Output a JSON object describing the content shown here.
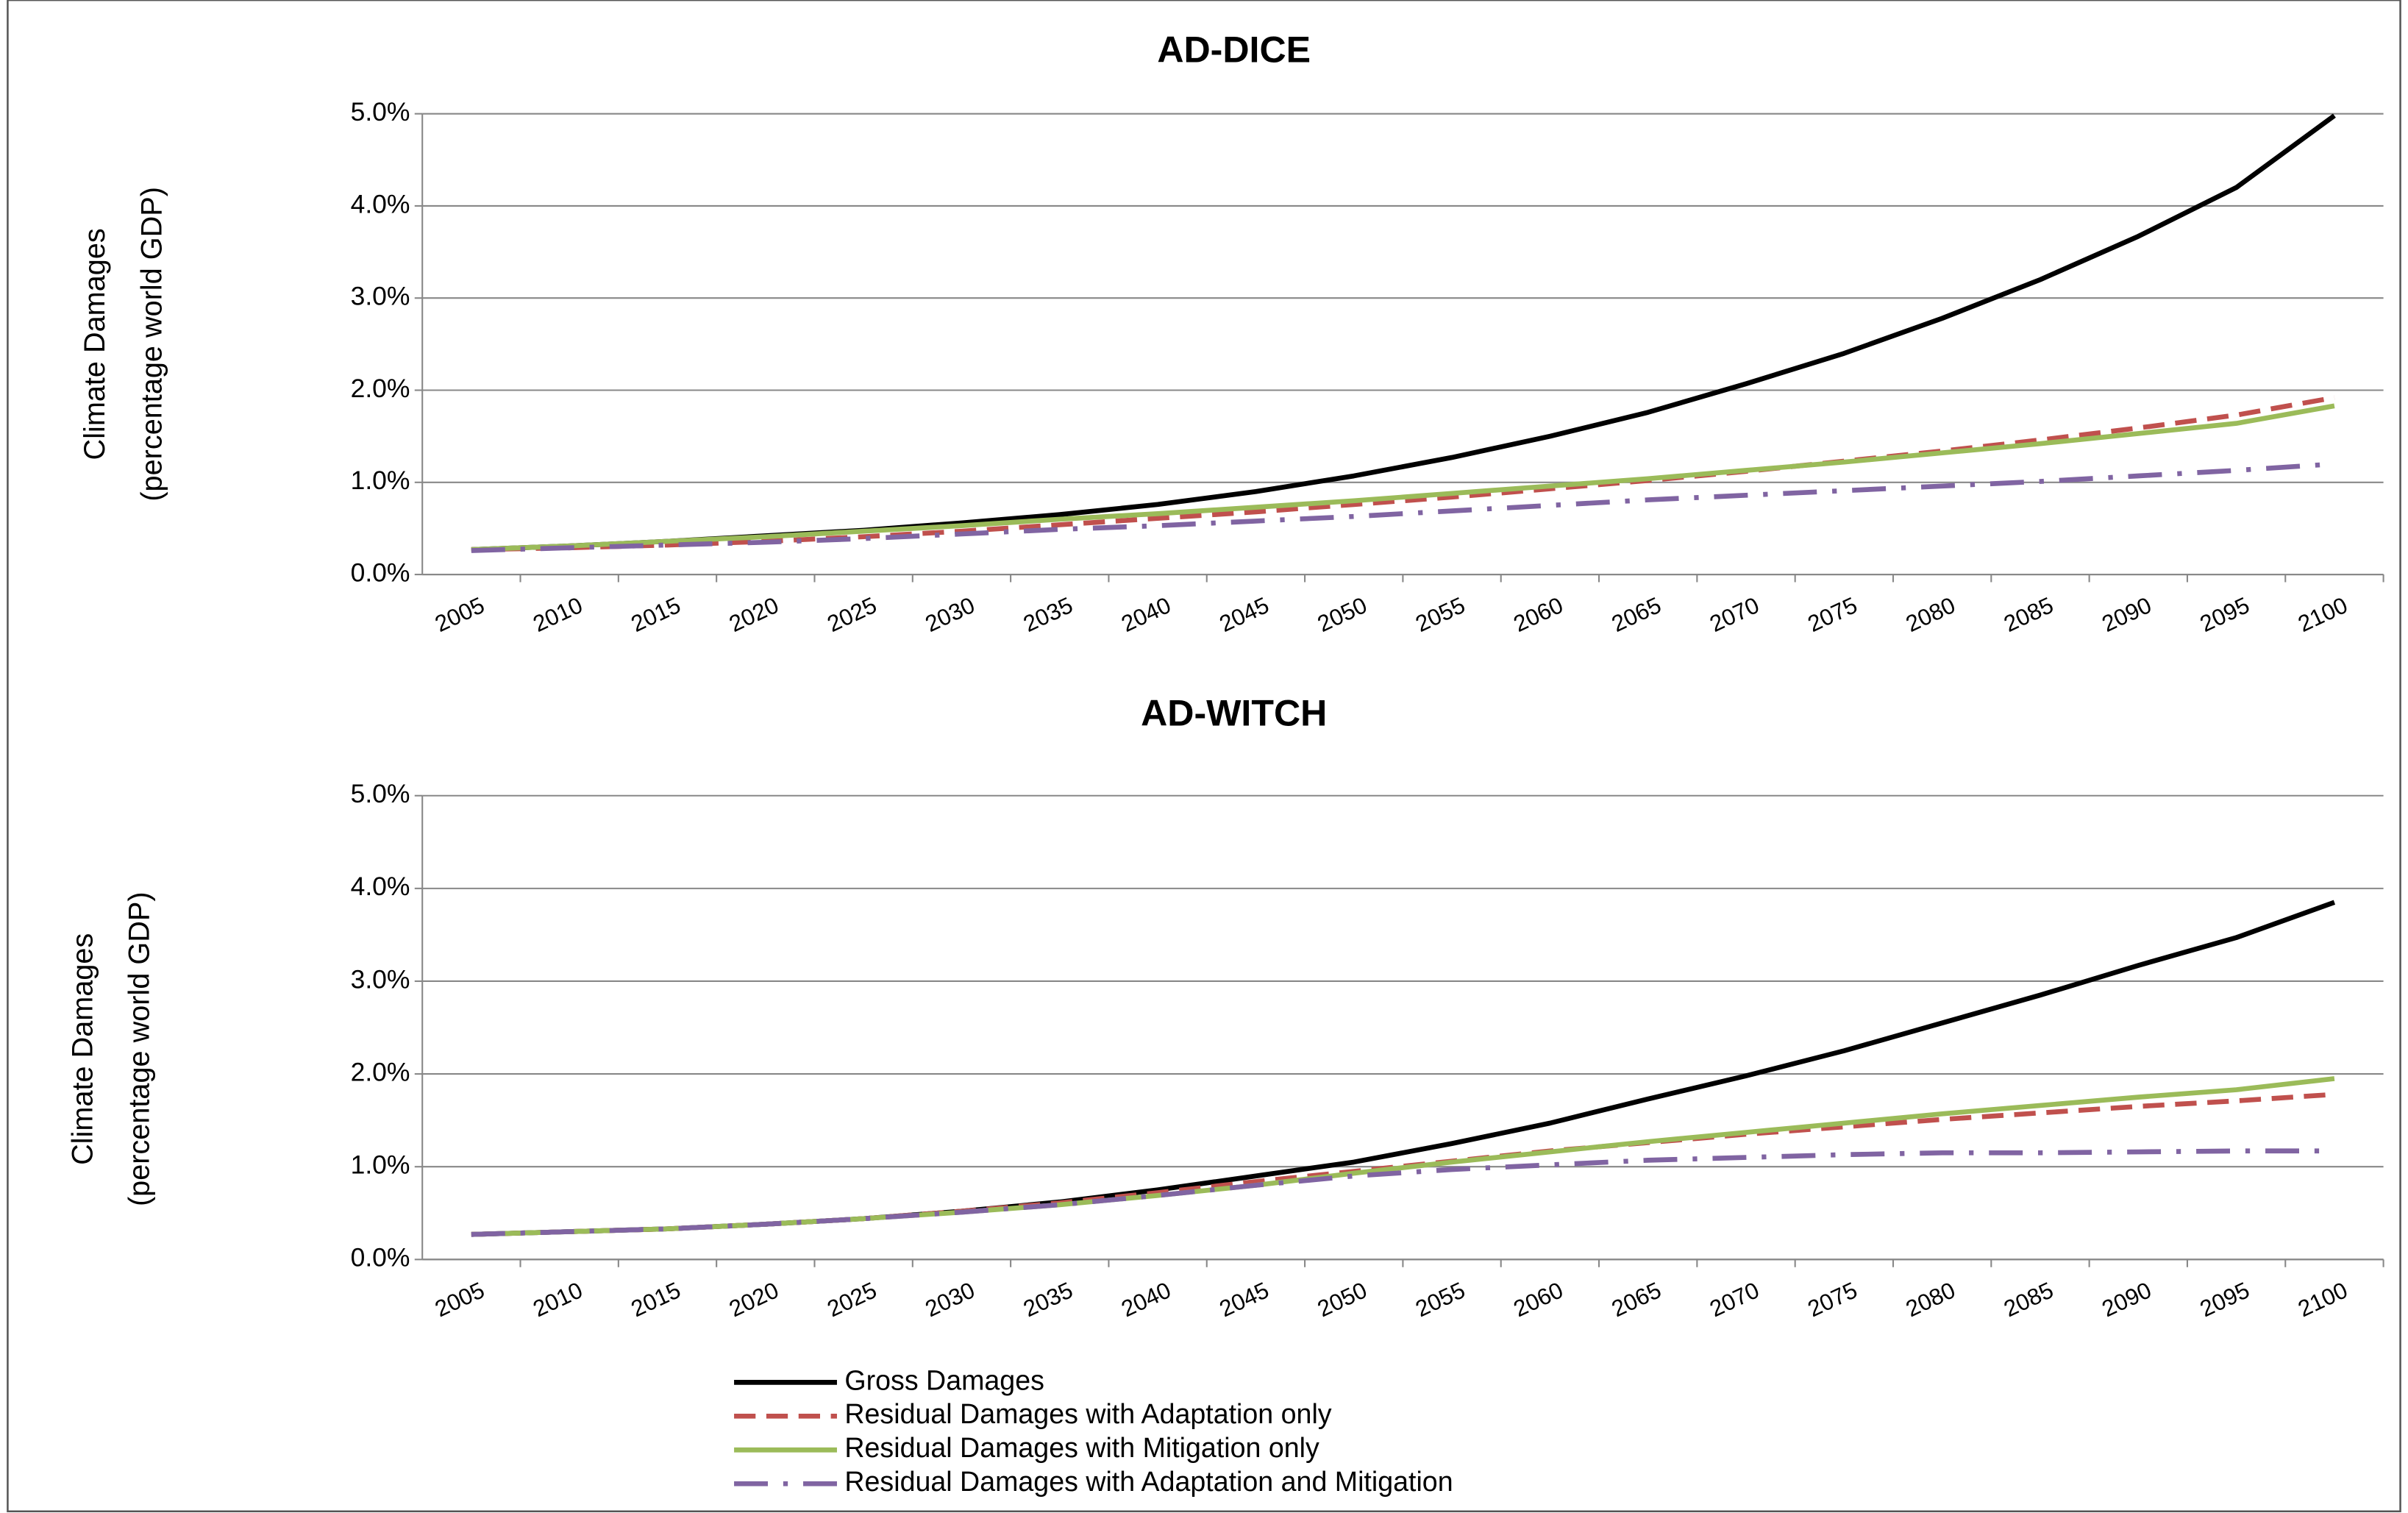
{
  "chart_data": [
    {
      "type": "line",
      "title": "AD-DICE",
      "y_label": [
        "Climate Damages",
        "(percentage world GDP)"
      ],
      "categories": [
        "2005",
        "2010",
        "2015",
        "2020",
        "2025",
        "2030",
        "2035",
        "2040",
        "2045",
        "2050",
        "2055",
        "2060",
        "2065",
        "2070",
        "2075",
        "2080",
        "2085",
        "2090",
        "2095",
        "2100"
      ],
      "ylim": [
        0,
        5
      ],
      "yticks": [
        {
          "value": 0,
          "label": "0.0%"
        },
        {
          "value": 1,
          "label": "1.0%"
        },
        {
          "value": 2,
          "label": "2.0%"
        },
        {
          "value": 3,
          "label": "3.0%"
        },
        {
          "value": 4,
          "label": "4.0%"
        },
        {
          "value": 5,
          "label": "5.0%"
        }
      ],
      "grid": true,
      "series": [
        {
          "name": "Gross Damages",
          "color": "#000000",
          "style": "solid",
          "values": [
            0.27,
            0.31,
            0.36,
            0.42,
            0.48,
            0.56,
            0.65,
            0.76,
            0.9,
            1.07,
            1.27,
            1.5,
            1.76,
            2.07,
            2.4,
            2.78,
            3.2,
            3.67,
            4.2,
            4.98
          ]
        },
        {
          "name": "Residual Damages with Adaptation only",
          "color": "#c0504d",
          "style": "dashed",
          "values": [
            0.27,
            0.29,
            0.32,
            0.36,
            0.41,
            0.47,
            0.54,
            0.61,
            0.68,
            0.76,
            0.84,
            0.93,
            1.02,
            1.12,
            1.23,
            1.34,
            1.46,
            1.59,
            1.73,
            1.92
          ]
        },
        {
          "name": "Residual Damages with Mitigation only",
          "color": "#9bbb59",
          "style": "solid",
          "values": [
            0.27,
            0.31,
            0.36,
            0.41,
            0.47,
            0.53,
            0.6,
            0.66,
            0.73,
            0.8,
            0.88,
            0.96,
            1.04,
            1.13,
            1.22,
            1.32,
            1.42,
            1.53,
            1.64,
            1.83
          ]
        },
        {
          "name": "Residual Damages with Adaptation and Mitigation",
          "color": "#8064a2",
          "style": "dashdot",
          "values": [
            0.26,
            0.29,
            0.32,
            0.35,
            0.39,
            0.44,
            0.49,
            0.53,
            0.58,
            0.63,
            0.69,
            0.75,
            0.81,
            0.86,
            0.91,
            0.96,
            1.01,
            1.07,
            1.13,
            1.2
          ]
        }
      ]
    },
    {
      "type": "line",
      "title": "AD-WITCH",
      "y_label": [
        "Climate Damages",
        "(percentage world GDP)"
      ],
      "categories": [
        "2005",
        "2010",
        "2015",
        "2020",
        "2025",
        "2030",
        "2035",
        "2040",
        "2045",
        "2050",
        "2055",
        "2060",
        "2065",
        "2070",
        "2075",
        "2080",
        "2085",
        "2090",
        "2095",
        "2100"
      ],
      "ylim": [
        0,
        5
      ],
      "yticks": [
        {
          "value": 0,
          "label": "0.0%"
        },
        {
          "value": 1,
          "label": "1.0%"
        },
        {
          "value": 2,
          "label": "2.0%"
        },
        {
          "value": 3,
          "label": "3.0%"
        },
        {
          "value": 4,
          "label": "4.0%"
        },
        {
          "value": 5,
          "label": "5.0%"
        }
      ],
      "grid": true,
      "series": [
        {
          "color": "#000000",
          "style": "solid",
          "values": [
            0.27,
            0.3,
            0.33,
            0.38,
            0.44,
            0.52,
            0.62,
            0.75,
            0.9,
            1.05,
            1.25,
            1.47,
            1.73,
            1.98,
            2.25,
            2.55,
            2.85,
            3.17,
            3.47,
            3.85
          ]
        },
        {
          "color": "#c0504d",
          "style": "dashed",
          "values": [
            0.27,
            0.3,
            0.33,
            0.38,
            0.44,
            0.52,
            0.61,
            0.72,
            0.84,
            0.95,
            1.06,
            1.17,
            1.26,
            1.35,
            1.43,
            1.51,
            1.58,
            1.65,
            1.71,
            1.78
          ]
        },
        {
          "color": "#9bbb59",
          "style": "solid",
          "values": [
            0.27,
            0.3,
            0.33,
            0.38,
            0.44,
            0.51,
            0.59,
            0.69,
            0.8,
            0.93,
            1.05,
            1.16,
            1.27,
            1.37,
            1.47,
            1.57,
            1.66,
            1.75,
            1.83,
            1.95
          ]
        },
        {
          "color": "#8064a2",
          "style": "dashdot",
          "values": [
            0.27,
            0.3,
            0.33,
            0.38,
            0.44,
            0.51,
            0.59,
            0.69,
            0.8,
            0.9,
            0.97,
            1.02,
            1.07,
            1.1,
            1.13,
            1.15,
            1.15,
            1.16,
            1.17,
            1.17
          ]
        }
      ]
    }
  ]
}
